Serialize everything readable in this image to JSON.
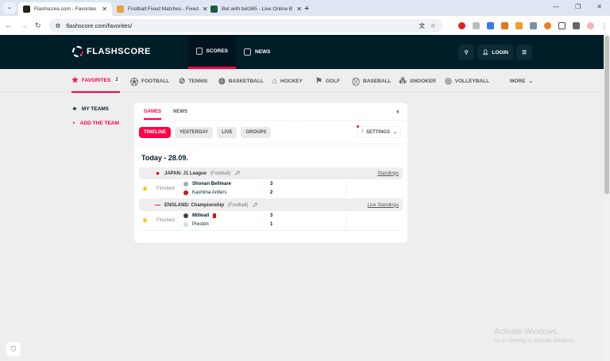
{
  "browser": {
    "tabs": [
      {
        "title": "Flashscore.com - Favorites",
        "active": true
      },
      {
        "title": "Football Fixed Matches - Fixed"
      },
      {
        "title": "Bet with bet365 - Live Online B"
      }
    ],
    "url": "flashscore.com/favorites/"
  },
  "header": {
    "logo": "FLASHSCORE",
    "nav": [
      {
        "label": "SCORES"
      },
      {
        "label": "NEWS"
      }
    ],
    "login": "LOGIN"
  },
  "sports": [
    {
      "label": "FAVORITES",
      "badge": "2"
    },
    {
      "label": "FOOTBALL"
    },
    {
      "label": "TENNIS"
    },
    {
      "label": "BASKETBALL"
    },
    {
      "label": "HOCKEY"
    },
    {
      "label": "GOLF"
    },
    {
      "label": "BASEBALL"
    },
    {
      "label": "SNOOKER"
    },
    {
      "label": "VOLLEYBALL"
    },
    {
      "label": "MORE"
    }
  ],
  "sidebar": {
    "my_teams": "MY TEAMS",
    "add_team": "ADD THE TEAM"
  },
  "card": {
    "tabs": [
      "GAMES",
      "NEWS"
    ],
    "filters": [
      "TIMELINE",
      "YESTERDAY",
      "LIVE",
      "GROUPS"
    ],
    "settings": "SETTINGS",
    "date": "Today - 28.09.",
    "leagues": [
      {
        "name": "JAPAN: J1 League",
        "sport": "(Football)",
        "link": "Standings",
        "match": {
          "status": "Finished",
          "home": "Shonan Bellmare",
          "away": "Kashima Antlers",
          "home_score": "3",
          "away_score": "2"
        }
      },
      {
        "name": "ENGLAND: Championship",
        "sport": "(Football)",
        "link": "Live Standings",
        "match": {
          "status": "Finished",
          "home": "Millwall",
          "away": "Preston",
          "home_score": "3",
          "away_score": "1"
        }
      }
    ]
  },
  "watermark": {
    "title": "Activate Windows",
    "subtitle": "Go to Settings to activate Windows."
  },
  "colors": {
    "accent": "#ff0046",
    "header": "#001e28"
  }
}
